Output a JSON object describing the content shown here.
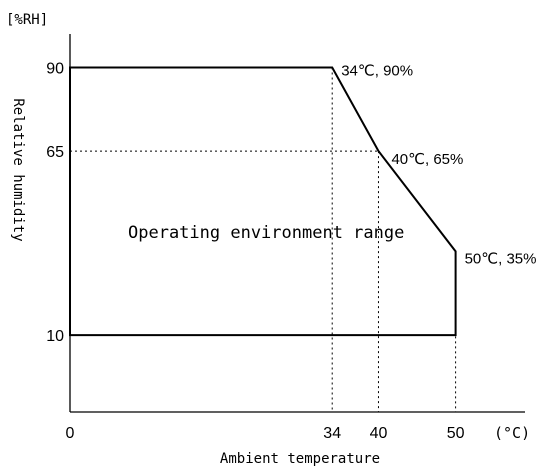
{
  "chart_data": {
    "type": "area",
    "title": "",
    "xlabel": "Ambient temperature",
    "ylabel": "Relative humidity",
    "x_unit": "(°C)",
    "y_unit": "[%RH]",
    "xlim": [
      0,
      59
    ],
    "ylim": [
      -13,
      100
    ],
    "x_ticks": [
      {
        "value": 0,
        "label": "0"
      },
      {
        "value": 34,
        "label": "34"
      },
      {
        "value": 40,
        "label": "40"
      },
      {
        "value": 50,
        "label": "50"
      }
    ],
    "y_ticks": [
      {
        "value": 10,
        "label": "10"
      },
      {
        "value": 65,
        "label": "65"
      },
      {
        "value": 90,
        "label": "90"
      }
    ],
    "series": [
      {
        "region_label": "Operating environment range",
        "points": [
          {
            "x": 0,
            "y": 10
          },
          {
            "x": 0,
            "y": 90
          },
          {
            "x": 34,
            "y": 90
          },
          {
            "x": 40,
            "y": 65
          },
          {
            "x": 50,
            "y": 35
          },
          {
            "x": 50,
            "y": 10
          }
        ]
      }
    ],
    "annotations": [
      {
        "x": 34,
        "y": 90,
        "text": "34℃, 90%"
      },
      {
        "x": 40,
        "y": 65,
        "text": "40℃, 65%"
      },
      {
        "x": 50,
        "y": 35,
        "text": "50℃, 35%"
      }
    ],
    "guides": [
      {
        "axis": "y",
        "value": 90
      },
      {
        "axis": "y",
        "value": 65
      },
      {
        "axis": "y",
        "value": 10
      },
      {
        "axis": "x",
        "value": 0
      },
      {
        "axis": "x",
        "value": 34
      },
      {
        "axis": "x",
        "value": 40
      },
      {
        "axis": "x",
        "value": 50
      }
    ],
    "grid": false,
    "legend": "none"
  }
}
